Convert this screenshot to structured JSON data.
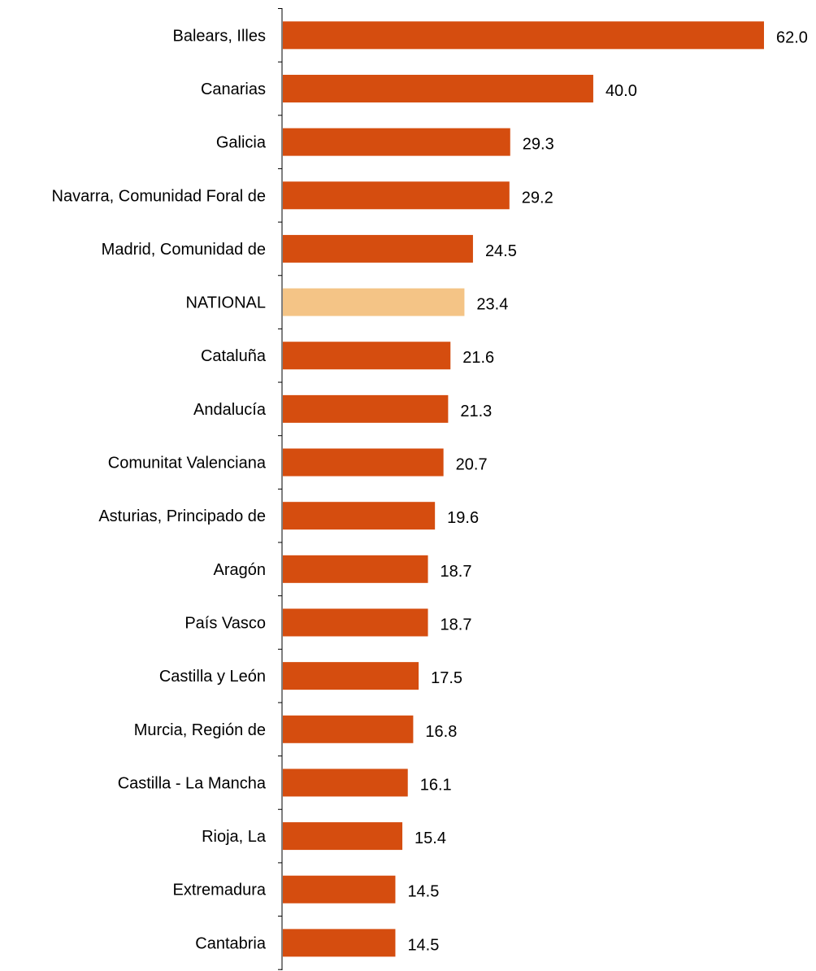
{
  "chart_data": {
    "type": "bar",
    "orientation": "horizontal",
    "categories": [
      "Balears, Illes",
      "Canarias",
      "Galicia",
      "Navarra, Comunidad Foral de",
      "Madrid, Comunidad de",
      "NATIONAL",
      "Cataluña",
      "Andalucía",
      "Comunitat Valenciana",
      "Asturias, Principado de",
      "Aragón",
      "País Vasco",
      "Castilla y León",
      "Murcia, Región de",
      "Castilla - La Mancha",
      "Rioja, La",
      "Extremadura",
      "Cantabria"
    ],
    "values": [
      62.0,
      40.0,
      29.3,
      29.2,
      24.5,
      23.4,
      21.6,
      21.3,
      20.7,
      19.6,
      18.7,
      18.7,
      17.5,
      16.8,
      16.1,
      15.4,
      14.5,
      14.5
    ],
    "value_labels": [
      "62.0",
      "40.0",
      "29.3",
      "29.2",
      "24.5",
      "23.4",
      "21.6",
      "21.3",
      "20.7",
      "19.6",
      "18.7",
      "18.7",
      "17.5",
      "16.8",
      "16.1",
      "15.4",
      "14.5",
      "14.5"
    ],
    "highlight_category": "NATIONAL",
    "xlim": [
      0,
      62.0
    ],
    "grid": false,
    "legend": "none",
    "title": "",
    "xlabel": "",
    "ylabel": "",
    "colors": {
      "bar": "#D54D0F",
      "highlight": "#F4C486",
      "axis": "#000000",
      "text": "#000000"
    }
  }
}
